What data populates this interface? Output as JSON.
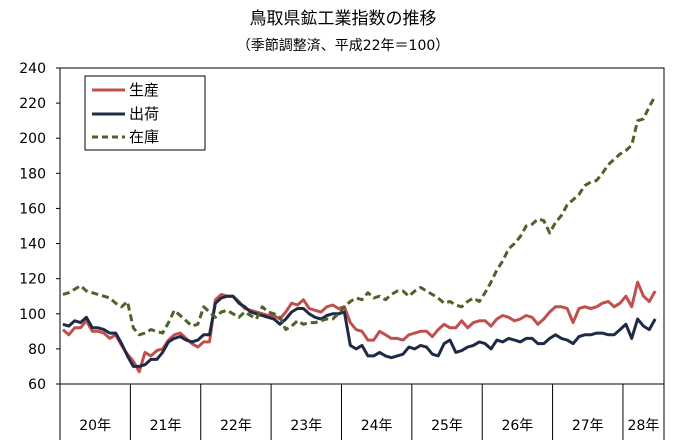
{
  "chart_data": {
    "type": "line",
    "title": "鳥取県鉱工業指数の推移",
    "subtitle": "（季節調整済、平成22年＝100）",
    "xlabel": "",
    "ylabel": "",
    "ylim": [
      60,
      240
    ],
    "yticks": [
      60,
      80,
      100,
      120,
      140,
      160,
      180,
      200,
      220,
      240
    ],
    "grid": false,
    "legend_position": "top-left",
    "year_labels": [
      "20年",
      "21年",
      "22年",
      "23年",
      "24年",
      "25年",
      "26年",
      "27年",
      "28年"
    ],
    "months_per_year": [
      12,
      12,
      12,
      12,
      12,
      12,
      12,
      12,
      7
    ],
    "series": [
      {
        "name": "生産",
        "color": "#c0504d",
        "dash": "solid",
        "values": [
          91,
          88,
          92,
          92,
          96,
          90,
          90,
          89,
          86,
          88,
          82,
          77,
          73,
          67,
          78,
          76,
          79,
          80,
          85,
          88,
          89,
          86,
          83,
          81,
          84,
          84,
          108,
          111,
          110,
          110,
          107,
          103,
          102,
          101,
          100,
          99,
          99,
          97,
          101,
          106,
          105,
          108,
          103,
          102,
          101,
          104,
          105,
          103,
          104,
          95,
          91,
          90,
          85,
          85,
          90,
          88,
          86,
          86,
          85,
          88,
          89,
          90,
          90,
          87,
          91,
          94,
          92,
          92,
          96,
          92,
          95,
          96,
          96,
          93,
          97,
          99,
          98,
          96,
          97,
          99,
          98,
          94,
          97,
          101,
          104,
          104,
          103,
          95,
          103,
          104,
          103,
          104,
          106,
          107,
          104,
          106,
          110,
          104,
          118,
          110,
          107,
          113
        ]
      },
      {
        "name": "出荷",
        "color": "#1f2a44",
        "dash": "solid",
        "values": [
          94,
          93,
          96,
          95,
          98,
          92,
          92,
          91,
          89,
          89,
          83,
          76,
          70,
          70,
          71,
          74,
          74,
          78,
          84,
          86,
          87,
          85,
          84,
          85,
          88,
          88,
          106,
          109,
          110,
          110,
          106,
          104,
          101,
          100,
          99,
          98,
          97,
          94,
          97,
          101,
          103,
          103,
          100,
          98,
          97,
          99,
          100,
          100,
          101,
          82,
          80,
          82,
          76,
          76,
          78,
          76,
          75,
          76,
          77,
          81,
          80,
          82,
          81,
          77,
          76,
          83,
          85,
          78,
          79,
          81,
          82,
          84,
          83,
          80,
          85,
          84,
          86,
          85,
          84,
          86,
          86,
          83,
          83,
          86,
          88,
          86,
          85,
          83,
          87,
          88,
          88,
          89,
          89,
          88,
          88,
          91,
          94,
          86,
          97,
          93,
          91,
          97
        ]
      },
      {
        "name": "在庫",
        "color": "#4f6228",
        "dash": "dashed",
        "values": [
          111,
          112,
          114,
          116,
          113,
          112,
          111,
          110,
          109,
          106,
          104,
          107,
          92,
          88,
          89,
          91,
          90,
          89,
          95,
          102,
          99,
          96,
          93,
          94,
          104,
          101,
          98,
          101,
          102,
          100,
          98,
          101,
          99,
          97,
          104,
          101,
          100,
          98,
          91,
          93,
          96,
          94,
          95,
          95,
          96,
          97,
          97,
          100,
          104,
          107,
          109,
          108,
          112,
          109,
          110,
          108,
          111,
          113,
          113,
          110,
          113,
          115,
          113,
          111,
          109,
          106,
          107,
          105,
          104,
          107,
          109,
          107,
          112,
          118,
          125,
          130,
          137,
          140,
          144,
          150,
          151,
          154,
          153,
          146,
          152,
          156,
          162,
          165,
          168,
          173,
          175,
          176,
          180,
          185,
          188,
          191,
          193,
          196,
          210,
          211,
          218,
          224
        ]
      }
    ]
  }
}
